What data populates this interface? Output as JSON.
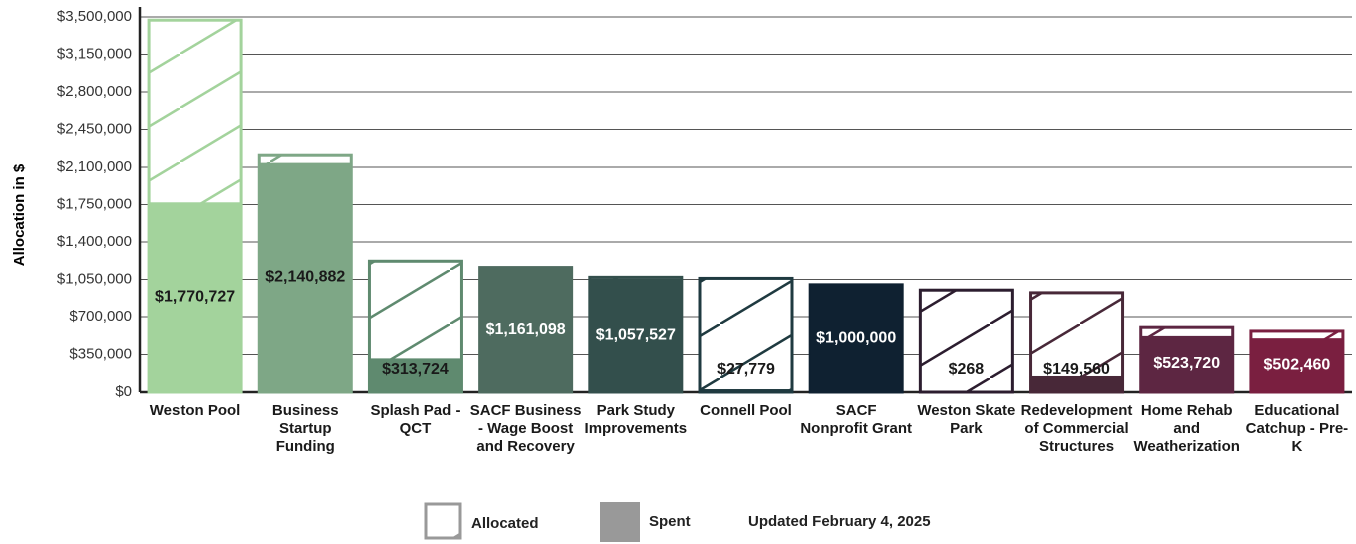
{
  "chart_data": {
    "type": "bar",
    "y_label": "Allocation in $",
    "categories": [
      "Weston Pool",
      "Business Startup Funding",
      "Splash Pad - QCT",
      "SACF Business - Wage Boost and Recovery",
      "Park Study Improvements",
      "Connell Pool",
      "SACF Nonprofit Grant",
      "Weston Skate Park",
      "Redevelopment of Commercial Structures",
      "Home Rehab and Weatherization",
      "Educational Catchup - Pre-K"
    ],
    "colors": [
      "#a3d39c",
      "#7ea786",
      "#5f8a6f",
      "#4e6b5f",
      "#334f4c",
      "#1f3a40",
      "#0f2131",
      "#2c1d2f",
      "#482838",
      "#5d2642",
      "#7a1f40"
    ],
    "series": [
      {
        "name": "Allocated",
        "values": [
          3470000,
          2210000,
          1220000,
          1161098,
          1070000,
          1060000,
          1000000,
          950000,
          925000,
          605000,
          570000
        ]
      },
      {
        "name": "Spent",
        "color": "#999999",
        "values": [
          1770727,
          2140882,
          313724,
          1161098,
          1057527,
          27779,
          1000000,
          268,
          149560,
          523720,
          502460
        ],
        "value_labels": [
          "$1,770,727",
          "$2,140,882",
          "$313,724",
          "$1,161,098",
          "$1,057,527",
          "$27,779",
          "$1,000,000",
          "$268",
          "$149,560",
          "$523,720",
          "$502,460"
        ]
      }
    ],
    "ylim": [
      0,
      3500000
    ],
    "yticks": [
      {
        "value": 0,
        "label": "$0"
      },
      {
        "value": 350000,
        "label": "$350,000"
      },
      {
        "value": 700000,
        "label": "$700,000"
      },
      {
        "value": 1050000,
        "label": "$1,050,000"
      },
      {
        "value": 1400000,
        "label": "$1,400,000"
      },
      {
        "value": 1750000,
        "label": "$1,750,000"
      },
      {
        "value": 2100000,
        "label": "$2,100,000"
      },
      {
        "value": 2450000,
        "label": "$2,450,000"
      },
      {
        "value": 2800000,
        "label": "$2,800,000"
      },
      {
        "value": 3150000,
        "label": "$3,150,000"
      },
      {
        "value": 3500000,
        "label": "$3,500,000"
      }
    ],
    "grid": true,
    "note": "Updated February 4, 2025"
  }
}
